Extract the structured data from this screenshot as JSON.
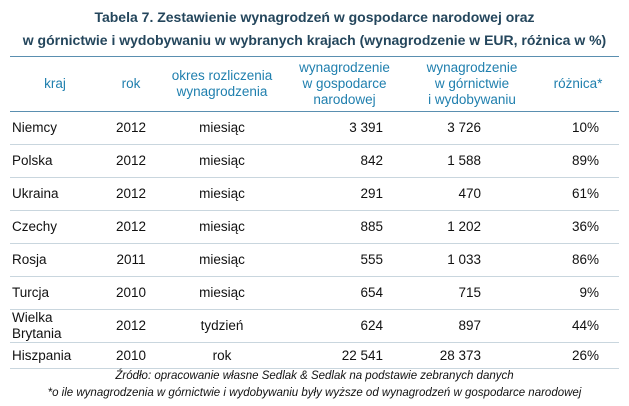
{
  "title": [
    "Tabela 7. Zestawienie wynagrodzeń w gospodarce narodowej oraz",
    "w  górnictwie i wydobywaniu w wybranych krajach (wynagrodzenie w EUR, różnica w %)"
  ],
  "table": {
    "headers": [
      [
        "kraj"
      ],
      [
        "rok"
      ],
      [
        "okres rozliczenia",
        "wynagrodzenia"
      ],
      [
        "wynagrodzenie",
        "w gospodarce",
        "narodowej"
      ],
      [
        "wynagrodzenie",
        "w górnictwie",
        "i wydobywaniu"
      ],
      [
        "różnica*"
      ]
    ],
    "rows": [
      [
        "Niemcy",
        "2012",
        "miesiąc",
        "3 391",
        "3 726",
        "10%"
      ],
      [
        "Polska",
        "2012",
        "miesiąc",
        "842",
        "1 588",
        "89%"
      ],
      [
        "Ukraina",
        "2012",
        "miesiąc",
        "291",
        "470",
        "61%"
      ],
      [
        "Czechy",
        "2012",
        "miesiąc",
        "885",
        "1 202",
        "36%"
      ],
      [
        "Rosja",
        "2011",
        "miesiąc",
        "555",
        "1 033",
        "86%"
      ],
      [
        "Turcja",
        "2010",
        "miesiąc",
        "654",
        "715",
        "9%"
      ],
      [
        "Wielka Brytania",
        "2012",
        "tydzień",
        "624",
        "897",
        "44%"
      ],
      [
        "Hiszpania",
        "2010",
        "rok",
        "22 541",
        "28 373",
        "26%"
      ]
    ]
  },
  "footnotes": [
    "Źródło: opracowanie własne Sedlak & Sedlak na podstawie zebranych danych",
    "*o ile wynagrodzenia w górnictwie i wydobywaniu były wyższe od wynagrodzeń w gospodarce narodowej"
  ]
}
